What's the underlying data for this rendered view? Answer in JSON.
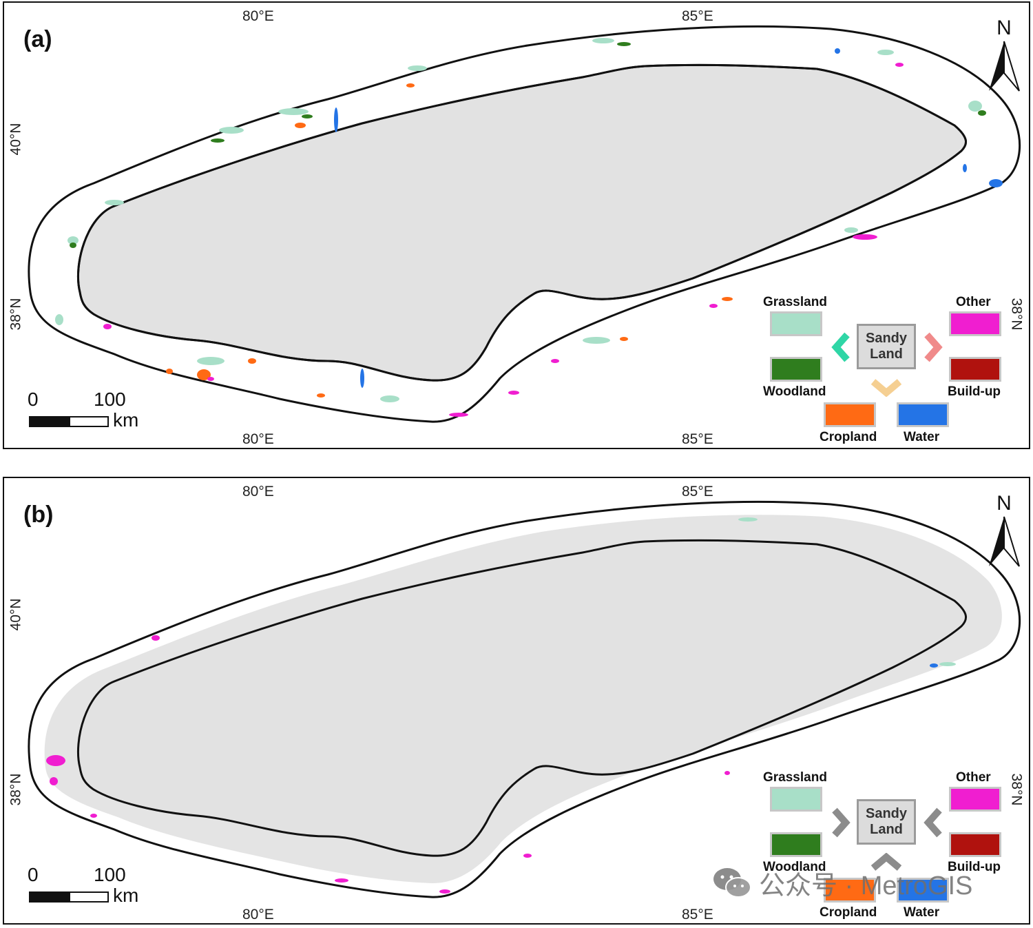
{
  "panels": [
    {
      "label": "(a)",
      "ticks": {
        "top_left": "80°E",
        "top_right": "85°E",
        "bottom_left": "80°E",
        "bottom_right": "85°E",
        "left": "40°N",
        "left2": "38°N",
        "right": "38°N"
      },
      "north": "N",
      "scale": {
        "zero": "0",
        "hundred": "100",
        "unit": "km"
      },
      "legend": {
        "center": [
          "Sandy",
          "Land"
        ],
        "grassland": "Grassland",
        "woodland": "Woodland",
        "cropland": "Cropland",
        "water": "Water",
        "other": "Other",
        "buildup": "Build-up"
      }
    },
    {
      "label": "(b)",
      "ticks": {
        "top_left": "80°E",
        "top_right": "85°E",
        "bottom_left": "80°E",
        "bottom_right": "85°E",
        "left": "40°N",
        "left2": "38°N",
        "right": "38°N"
      },
      "north": "N",
      "scale": {
        "zero": "0",
        "hundred": "100",
        "unit": "km"
      },
      "legend": {
        "center": [
          "Sandy",
          "Land"
        ],
        "grassland": "Grassland",
        "woodland": "Woodland",
        "cropland": "Cropland",
        "water": "Water",
        "other": "Other",
        "buildup": "Build-up"
      }
    }
  ],
  "colors": {
    "grassland": "#a8dfc8",
    "woodland": "#2f7d1e",
    "cropland": "#ff6a14",
    "water": "#2474e6",
    "other": "#f01ed0",
    "buildup": "#b0120e",
    "sandy_land": "#e2e2e2",
    "arrow_to_grass": "#2fd6a6",
    "arrow_to_other": "#f08a8a",
    "arrow_to_crop": "#f5cf92",
    "arrow_gray": "#8c8c8c"
  },
  "watermark": {
    "text": "公众号 · MetroGIS",
    "icon": "wechat-icon"
  }
}
